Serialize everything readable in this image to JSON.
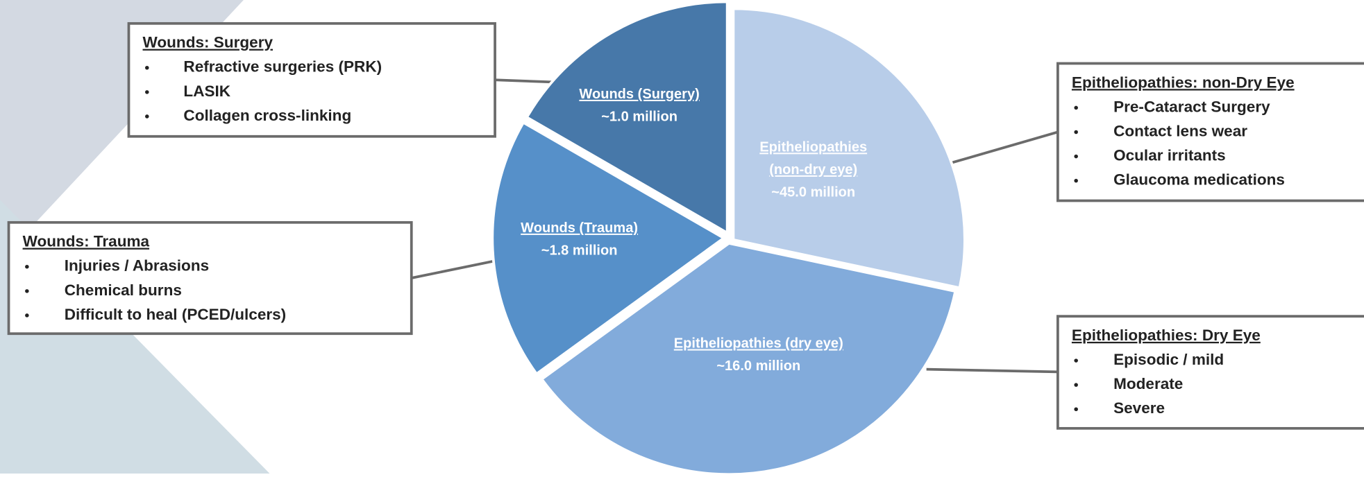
{
  "slices": [
    {
      "label_lines": [
        "Epitheliopathies",
        "(non-dry eye)"
      ],
      "value": "~45.0 million"
    },
    {
      "label_lines": [
        "Epitheliopathies (dry eye)"
      ],
      "value": "~16.0 million"
    },
    {
      "label_lines": [
        "Wounds (Trauma)"
      ],
      "value": "~1.8 million"
    },
    {
      "label_lines": [
        "Wounds (Surgery)"
      ],
      "value": "~1.0 million"
    }
  ],
  "callouts": [
    {
      "title": "Wounds: Surgery",
      "items": [
        "Refractive surgeries (PRK)",
        "LASIK",
        "Collagen cross-linking"
      ]
    },
    {
      "title": "Wounds: Trauma",
      "items": [
        "Injuries / Abrasions",
        "Chemical burns",
        "Difficult to heal (PCED/ulcers)"
      ]
    },
    {
      "title": "Epitheliopathies: non-Dry Eye",
      "items": [
        "Pre-Cataract Surgery",
        "Contact lens wear",
        "Ocular irritants",
        "Glaucoma medications"
      ]
    },
    {
      "title": "Epitheliopathies: Dry Eye",
      "items": [
        "Episodic / mild",
        "Moderate",
        "Severe"
      ]
    }
  ]
}
